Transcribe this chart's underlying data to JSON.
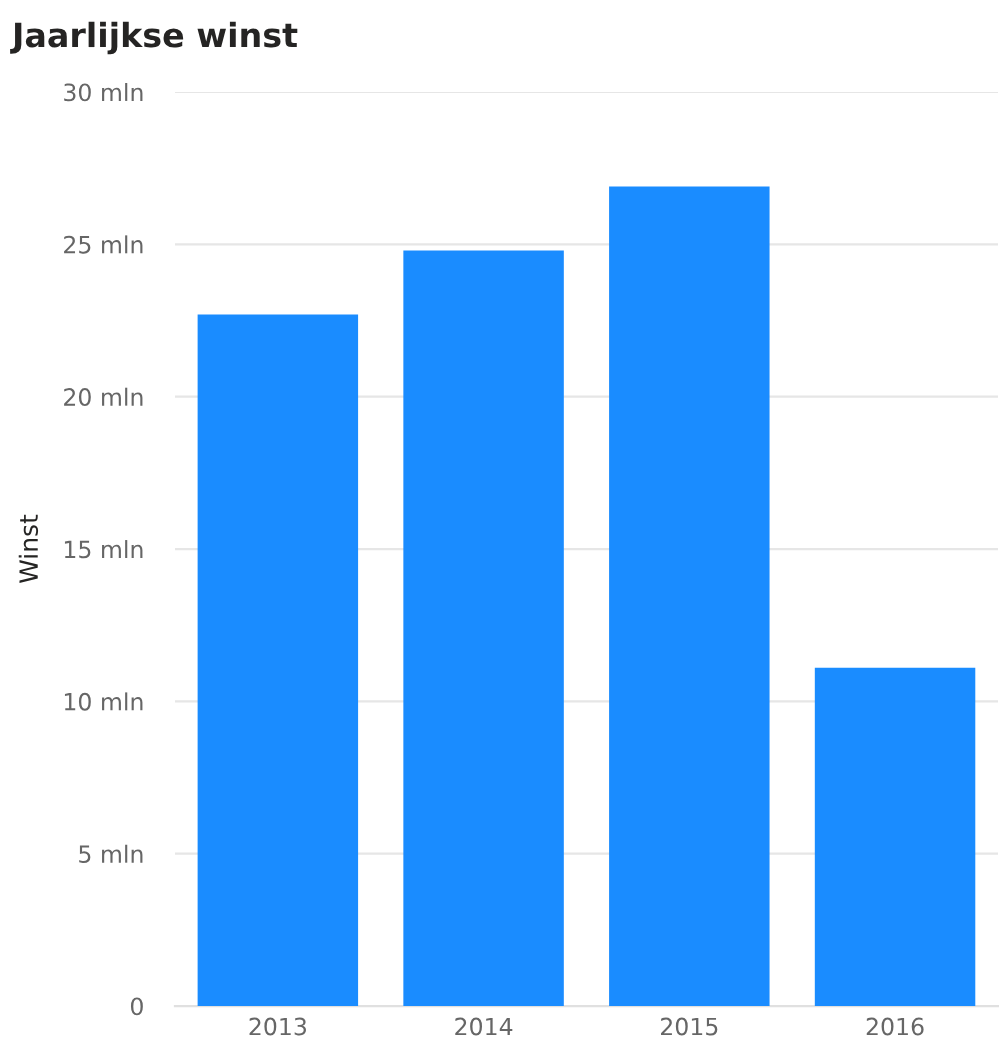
{
  "chart_data": {
    "type": "bar",
    "title": "Jaarlijkse winst",
    "ylabel": "Winst",
    "categories": [
      "2013",
      "2014",
      "2015",
      "2016"
    ],
    "values": [
      22.7,
      24.8,
      26.9,
      11.1
    ],
    "color": "#1a8cff",
    "ylim": [
      0,
      30
    ],
    "yticks": [
      {
        "value": 0,
        "label": "0"
      },
      {
        "value": 5,
        "label": "5 mln"
      },
      {
        "value": 10,
        "label": "10 mln"
      },
      {
        "value": 15,
        "label": "15 mln"
      },
      {
        "value": 20,
        "label": "20 mln"
      },
      {
        "value": 25,
        "label": "25 mln"
      },
      {
        "value": 30,
        "label": "30 mln"
      }
    ],
    "grid": "y",
    "legend": false
  }
}
